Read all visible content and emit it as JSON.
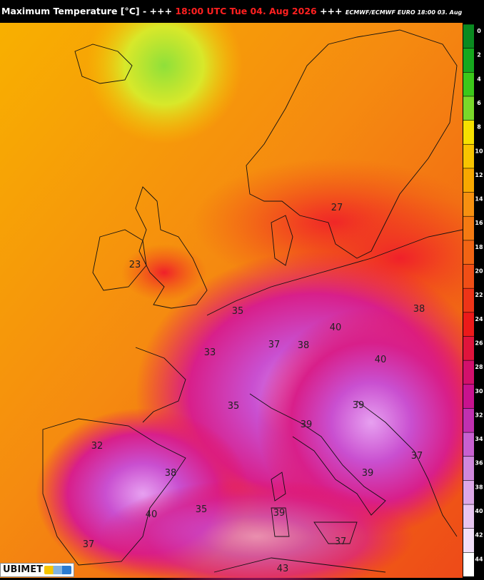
{
  "header": {
    "title": "Maximum Temperature [°C]",
    "sep1": "- +++",
    "time": "18:00 UTC Tue 04. Aug 2026",
    "sep2": "+++",
    "model": "ECMWF/ECMWF EURO 18:00 03. Aug"
  },
  "legend": {
    "ticks": [
      0,
      2,
      4,
      6,
      8,
      10,
      12,
      14,
      16,
      18,
      20,
      22,
      24,
      26,
      28,
      30,
      32,
      34,
      36,
      38,
      40,
      42,
      44
    ],
    "colors": [
      "#0a8a20",
      "#16a81e",
      "#3cc81a",
      "#7ad82a",
      "#f6e000",
      "#f8c400",
      "#f8a800",
      "#f79010",
      "#f57a12",
      "#f26414",
      "#f04e16",
      "#ee3418",
      "#ec1a1a",
      "#e0143c",
      "#d2106c",
      "#c8128e",
      "#c030b0",
      "#c860d0",
      "#d088dc",
      "#dca8e6",
      "#e8c6f0",
      "#f2e0f8",
      "#ffffff"
    ]
  },
  "labels": [
    27,
    23,
    35,
    40,
    38,
    33,
    37,
    38,
    40,
    35,
    39,
    39,
    32,
    38,
    37,
    39,
    40,
    35,
    39,
    37,
    37,
    43
  ],
  "logo": "UBIMET"
}
